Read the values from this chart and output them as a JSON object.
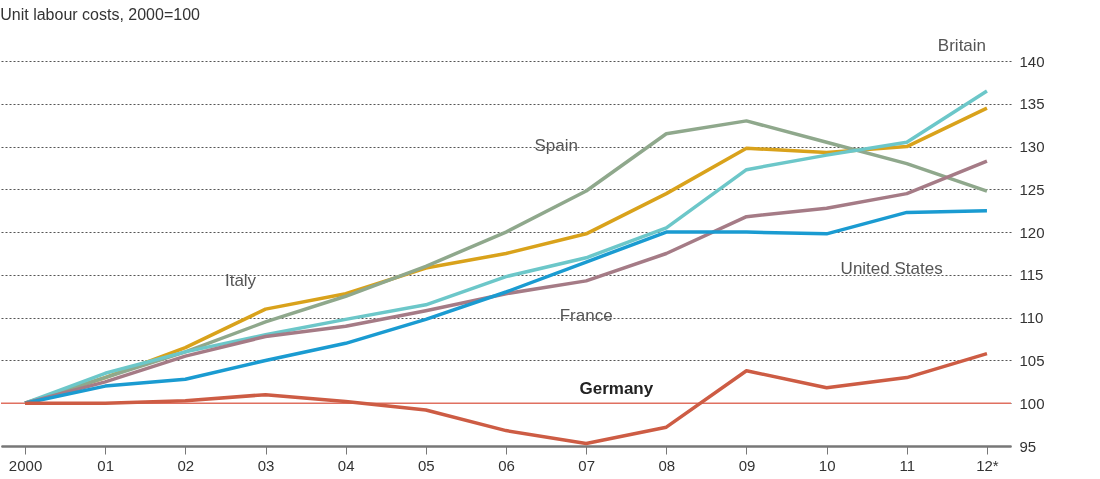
{
  "chart_data": {
    "type": "line",
    "title": "Unit labour costs, 2000=100",
    "categories": [
      "2000",
      "01",
      "02",
      "03",
      "04",
      "05",
      "06",
      "07",
      "08",
      "09",
      "10",
      "11",
      "12*"
    ],
    "series": [
      {
        "name": "Italy",
        "color": "#d9a21b",
        "values": [
          100,
          103,
          106.5,
          111,
          112.8,
          115.8,
          117.5,
          119.8,
          124.5,
          129.8,
          129.3,
          130,
          134.5
        ]
      },
      {
        "name": "Spain",
        "color": "#8fa88c",
        "values": [
          100,
          103,
          106,
          109.5,
          112.5,
          116,
          120,
          124.8,
          131.5,
          133,
          130.5,
          128,
          124.8
        ]
      },
      {
        "name": "Britain",
        "color": "#6cc7c9",
        "values": [
          100,
          103.5,
          106,
          108,
          109.8,
          111.5,
          114.8,
          117,
          120.5,
          127.3,
          129,
          130.5,
          136.5
        ]
      },
      {
        "name": "France",
        "color": "#a57b86",
        "values": [
          100,
          102.5,
          105.5,
          107.8,
          109,
          110.8,
          112.8,
          114.3,
          117.5,
          121.8,
          122.8,
          124.5,
          128.3
        ]
      },
      {
        "name": "United States",
        "color": "#1a9bd1",
        "values": [
          100,
          102,
          102.8,
          105,
          107,
          109.8,
          113,
          116.5,
          120,
          120,
          119.8,
          122.3,
          122.5
        ]
      },
      {
        "name": "Germany",
        "color": "#cd5c44",
        "values": [
          100,
          100,
          100.3,
          101,
          100.2,
          99.2,
          96.8,
          95.3,
          97.2,
          103.8,
          101.8,
          103,
          105.8
        ]
      }
    ],
    "ylim": [
      95,
      140
    ],
    "yticks": [
      95,
      100,
      105,
      110,
      115,
      120,
      125,
      130,
      135,
      140
    ],
    "grid": "y",
    "marker": "none",
    "line_style": "solid",
    "ref_lines": [
      {
        "axis": "y",
        "value": 100,
        "color": "#e07060"
      }
    ]
  }
}
